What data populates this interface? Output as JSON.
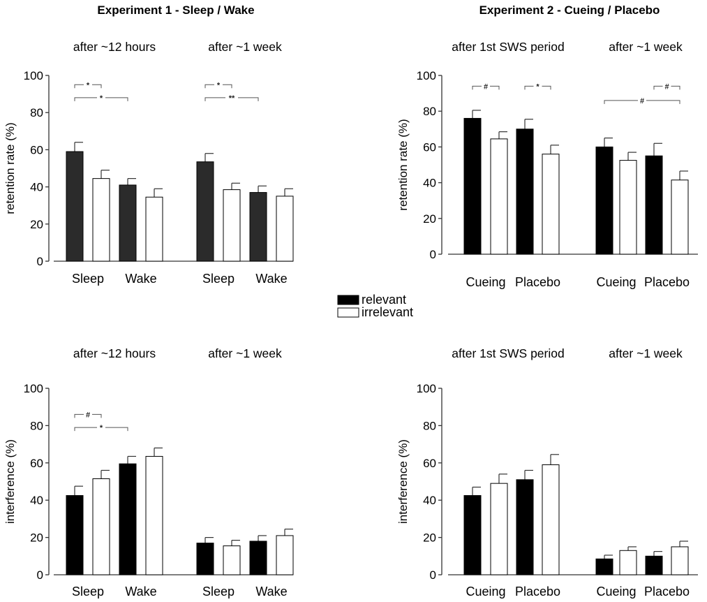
{
  "figure": {
    "exp1_title": "Experiment 1 - Sleep / Wake",
    "exp2_title": "Experiment 2 - Cueing / Placebo",
    "legend": {
      "relevant_label": "relevant",
      "irrelevant_label": "irrelevant"
    }
  },
  "colors": {
    "relevant_exp1_top": "#2b2b2b",
    "relevant_other": "#000000",
    "irrelevant": "#ffffff",
    "axis": "#333333",
    "bracket": "#555555"
  },
  "chart_data": [
    {
      "id": "exp1-retention",
      "type": "bar",
      "title": "",
      "group_labels": [
        "after ~12 hours",
        "after ~1 week"
      ],
      "categories": [
        "Sleep",
        "Wake",
        "Sleep",
        "Wake"
      ],
      "ylabel": "retention rate (%)",
      "xlabel": "",
      "ylim": [
        0,
        100
      ],
      "yticks": [
        "0",
        "20",
        "40",
        "60",
        "80",
        "100"
      ],
      "series": [
        {
          "name": "relevant",
          "values": [
            59,
            41,
            53.5,
            37
          ],
          "errors": [
            5,
            3.5,
            4.5,
            3.5
          ]
        },
        {
          "name": "irrelevant",
          "values": [
            44.5,
            34.5,
            38.5,
            35
          ],
          "errors": [
            4.5,
            4.5,
            3.5,
            4
          ]
        }
      ],
      "significance": [
        {
          "label": "*",
          "from": 0,
          "to": 1,
          "level": 95
        },
        {
          "label": "*",
          "from": 0,
          "to": 2,
          "level": 88
        },
        {
          "label": "*",
          "from": 4,
          "to": 5,
          "level": 95
        },
        {
          "label": "**",
          "from": 4,
          "to": 6,
          "level": 88
        }
      ]
    },
    {
      "id": "exp2-retention",
      "type": "bar",
      "title": "",
      "group_labels": [
        "after 1st SWS period",
        "after ~1 week"
      ],
      "categories": [
        "Cueing",
        "Placebo",
        "Cueing",
        "Placebo"
      ],
      "ylabel": "retention rate (%)",
      "xlabel": "",
      "ylim": [
        0,
        100
      ],
      "yticks": [
        "0",
        "20",
        "40",
        "60",
        "80",
        "100"
      ],
      "series": [
        {
          "name": "relevant",
          "values": [
            76,
            70,
            60,
            55
          ],
          "errors": [
            4.5,
            5.5,
            5,
            7
          ]
        },
        {
          "name": "irrelevant",
          "values": [
            64.5,
            56,
            52.5,
            41.5
          ],
          "errors": [
            4,
            5,
            4.5,
            5
          ]
        }
      ],
      "significance": [
        {
          "label": "#",
          "from": 0,
          "to": 1,
          "level": 94
        },
        {
          "label": "*",
          "from": 2,
          "to": 3,
          "level": 94
        },
        {
          "label": "#",
          "from": 6,
          "to": 7,
          "level": 94
        },
        {
          "label": "#",
          "from": 4,
          "to": 7,
          "level": 86
        }
      ]
    },
    {
      "id": "exp1-interference",
      "type": "bar",
      "title": "",
      "group_labels": [
        "after ~12 hours",
        "after ~1 week"
      ],
      "categories": [
        "Sleep",
        "Wake",
        "Sleep",
        "Wake"
      ],
      "ylabel": "interference (%)",
      "xlabel": "",
      "ylim": [
        0,
        100
      ],
      "yticks": [
        "0",
        "20",
        "40",
        "60",
        "80",
        "100"
      ],
      "series": [
        {
          "name": "relevant",
          "values": [
            42.5,
            59.5,
            17,
            18
          ],
          "errors": [
            5,
            4,
            3,
            3
          ]
        },
        {
          "name": "irrelevant",
          "values": [
            51.5,
            63.5,
            15.5,
            21
          ],
          "errors": [
            4.5,
            4.5,
            3,
            3.5
          ]
        }
      ],
      "significance": [
        {
          "label": "#",
          "from": 0,
          "to": 1,
          "level": 86
        },
        {
          "label": "*",
          "from": 0,
          "to": 2,
          "level": 79
        }
      ]
    },
    {
      "id": "exp2-interference",
      "type": "bar",
      "title": "",
      "group_labels": [
        "after 1st SWS period",
        "after ~1 week"
      ],
      "categories": [
        "Cueing",
        "Placebo",
        "Cueing",
        "Placebo"
      ],
      "ylabel": "interference (%)",
      "xlabel": "",
      "ylim": [
        0,
        100
      ],
      "yticks": [
        "0",
        "20",
        "40",
        "60",
        "80",
        "100"
      ],
      "series": [
        {
          "name": "relevant",
          "values": [
            42.5,
            51,
            8.5,
            10
          ],
          "errors": [
            4.5,
            5,
            2,
            2.5
          ]
        },
        {
          "name": "irrelevant",
          "values": [
            49,
            59,
            13,
            15
          ],
          "errors": [
            5,
            5.5,
            2,
            3
          ]
        }
      ],
      "significance": []
    }
  ]
}
